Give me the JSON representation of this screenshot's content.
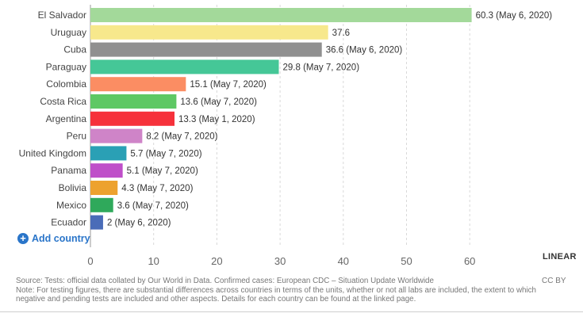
{
  "chart_data": {
    "type": "bar",
    "orientation": "horizontal",
    "categories": [
      "El Salvador",
      "Uruguay",
      "Cuba",
      "Paraguay",
      "Colombia",
      "Costa Rica",
      "Argentina",
      "Peru",
      "United Kingdom",
      "Panama",
      "Bolivia",
      "Mexico",
      "Ecuador"
    ],
    "values": [
      60.3,
      37.6,
      36.6,
      29.8,
      15.1,
      13.6,
      13.3,
      8.2,
      5.7,
      5.1,
      4.3,
      3.6,
      2
    ],
    "value_labels": [
      "60.3 (May 6, 2020)",
      "37.6",
      "36.6 (May 6, 2020)",
      "29.8 (May 7, 2020)",
      "15.1 (May 7, 2020)",
      "13.6 (May 7, 2020)",
      "13.3 (May 1, 2020)",
      "8.2 (May 7, 2020)",
      "5.7 (May 7, 2020)",
      "5.1 (May 7, 2020)",
      "4.3 (May 7, 2020)",
      "3.6 (May 7, 2020)",
      "2 (May 6, 2020)"
    ],
    "colors": [
      "#a3d99a",
      "#f7e88c",
      "#909090",
      "#45c797",
      "#fb8d63",
      "#5ec864",
      "#f6313b",
      "#cf84c8",
      "#2aa0b5",
      "#bf4fc9",
      "#eda22e",
      "#2fa95b",
      "#4a6cb8"
    ],
    "xlim": [
      0,
      60
    ],
    "x_ticks": [
      0,
      10,
      20,
      30,
      40,
      50,
      60
    ],
    "grid": true,
    "scale": "LINEAR"
  },
  "controls": {
    "add_country_label": "Add country",
    "scale_label": "LINEAR"
  },
  "footer": {
    "source": "Source: Tests: official data collated by Our World in Data. Confirmed cases: European CDC – Situation Update Worldwide",
    "note": "Note: For testing figures, there are substantial differences across countries in terms of the units, whether or not all labs are included, the extent to which negative and pending tests are included and other aspects. Details for each country can be found at the linked page.",
    "license": "CC BY"
  }
}
